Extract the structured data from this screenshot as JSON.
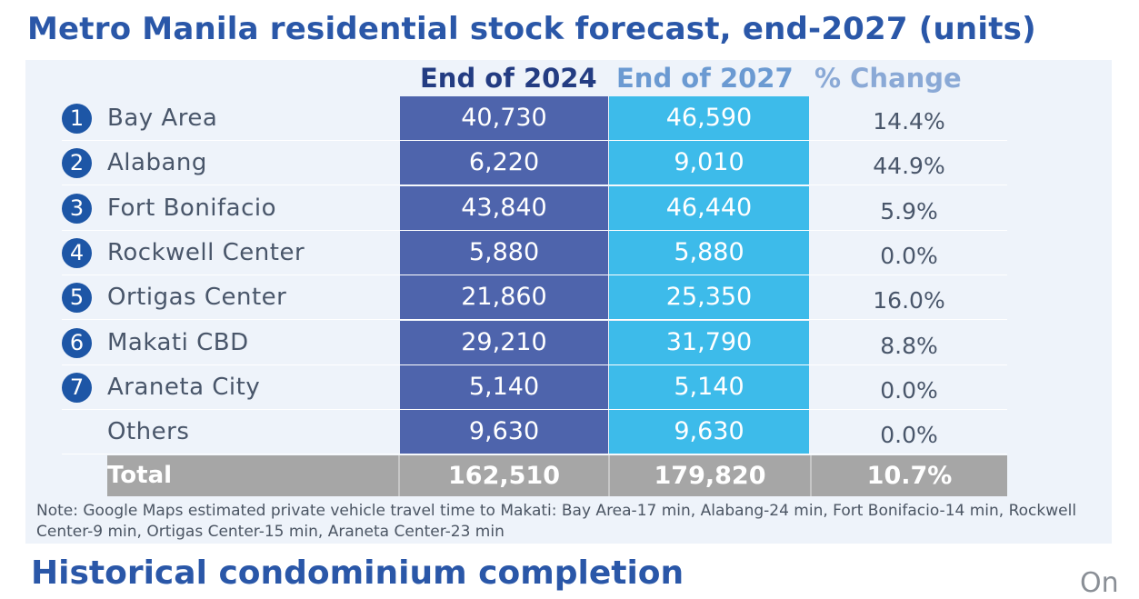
{
  "title": "Metro Manila residential stock forecast, end-2027 (units)",
  "chart_data": {
    "type": "table",
    "columns": [
      "End of 2024",
      "End of 2027",
      "% Change"
    ],
    "rows": [
      {
        "number": "1",
        "label": "Bay Area",
        "end_2024": "40,730",
        "end_2027": "46,590",
        "pct_change": "14.4%"
      },
      {
        "number": "2",
        "label": "Alabang",
        "end_2024": "6,220",
        "end_2027": "9,010",
        "pct_change": "44.9%"
      },
      {
        "number": "3",
        "label": "Fort Bonifacio",
        "end_2024": "43,840",
        "end_2027": "46,440",
        "pct_change": "5.9%"
      },
      {
        "number": "4",
        "label": "Rockwell Center",
        "end_2024": "5,880",
        "end_2027": "5,880",
        "pct_change": "0.0%"
      },
      {
        "number": "5",
        "label": "Ortigas Center",
        "end_2024": "21,860",
        "end_2027": "25,350",
        "pct_change": "16.0%"
      },
      {
        "number": "6",
        "label": "Makati CBD",
        "end_2024": "29,210",
        "end_2027": "31,790",
        "pct_change": "8.8%"
      },
      {
        "number": "7",
        "label": "Araneta City",
        "end_2024": "5,140",
        "end_2027": "5,140",
        "pct_change": "0.0%"
      },
      {
        "number": "",
        "label": "Others",
        "end_2024": "9,630",
        "end_2027": "9,630",
        "pct_change": "0.0%"
      }
    ],
    "total": {
      "label": "Total",
      "end_2024": "162,510",
      "end_2027": "179,820",
      "pct_change": "10.7%"
    }
  },
  "note": "Note: Google Maps estimated private vehicle travel time to Makati: Bay Area-17 min, Alabang-24 min, Fort Bonifacio-14 min, Rockwell Center-9 min, Ortigas Center-15 min, Araneta Center-23 min",
  "next_section_title": "Historical condominium completion",
  "corner_text": "On",
  "colors": {
    "title": "#2a57a8",
    "badge": "#1d56a6",
    "end_2024_fill": "#4e64ac",
    "end_2027_fill": "#3dbbea",
    "total_fill": "#a6a6a6",
    "panel_bg": "#eef3fa"
  }
}
